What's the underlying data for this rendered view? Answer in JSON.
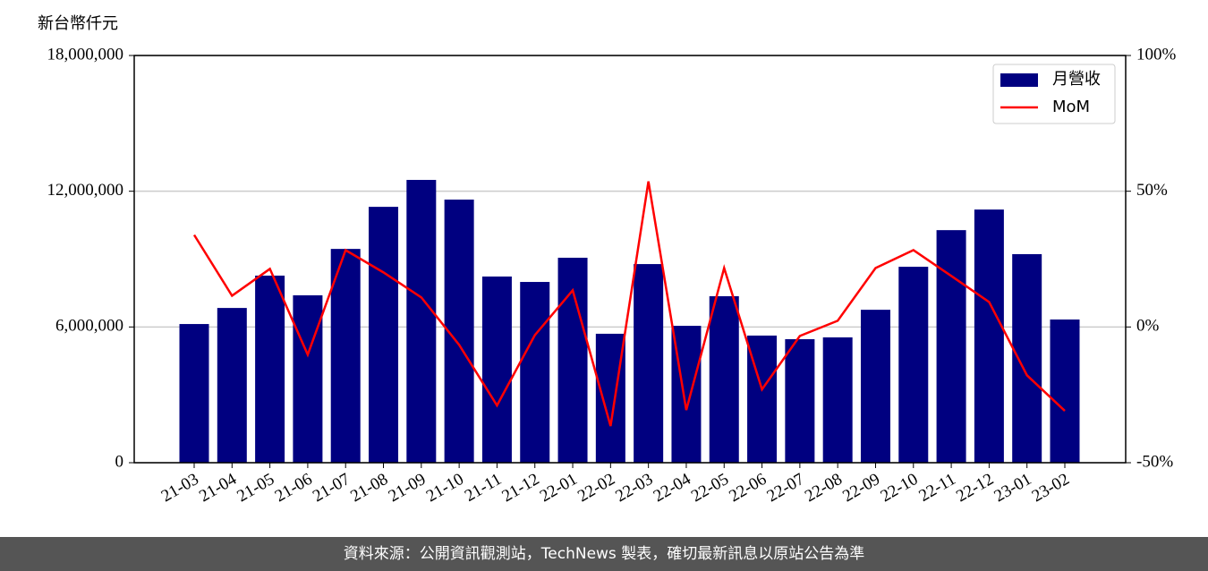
{
  "chart_data": {
    "type": "bar",
    "y_label": "新台幣仟元",
    "categories": [
      "21-03",
      "21-04",
      "21-05",
      "21-06",
      "21-07",
      "21-08",
      "21-09",
      "21-10",
      "21-11",
      "21-12",
      "22-01",
      "22-02",
      "22-03",
      "22-04",
      "22-05",
      "22-06",
      "22-07",
      "22-08",
      "22-09",
      "22-10",
      "22-11",
      "22-12",
      "23-01",
      "23-02"
    ],
    "series": [
      {
        "name": "月營收",
        "type": "bar",
        "color": "#000080",
        "values": [
          6130000,
          6840000,
          8270000,
          7400000,
          9450000,
          11310000,
          12500000,
          11630000,
          8230000,
          7990000,
          9060000,
          5700000,
          8780000,
          6050000,
          7360000,
          5620000,
          5460000,
          5540000,
          6760000,
          8660000,
          10280000,
          11190000,
          9220000,
          6330000
        ]
      },
      {
        "name": "MoM",
        "type": "line",
        "axis": "y2",
        "color": "#ff0000",
        "values": [
          33.9,
          11.5,
          21.4,
          -10.2,
          28.3,
          20.1,
          10.9,
          -6.6,
          -28.9,
          -3.0,
          13.5,
          -36.5,
          53.6,
          -30.6,
          21.7,
          -23.0,
          -3.3,
          2.3,
          21.7,
          28.3,
          18.8,
          9.2,
          -17.8,
          -30.9
        ]
      }
    ],
    "ylim": [
      0,
      18000000
    ],
    "yticks": [
      0,
      {
        "value": 6000000,
        "label": "6,000,000"
      },
      {
        "value": 12000000,
        "label": "12,000,000"
      },
      {
        "value": 18000000,
        "label": "18,000,000"
      }
    ],
    "y2lim": [
      -50,
      100
    ],
    "y2ticks": [
      {
        "value": -50,
        "label": "-50%"
      },
      {
        "value": 0,
        "label": "0%"
      },
      {
        "value": 50,
        "label": "50%"
      },
      {
        "value": 100,
        "label": "100%"
      }
    ],
    "grid": true,
    "legend": "upper right"
  },
  "footer": "資料來源：公開資訊觀測站，TechNews 製表，確切最新訊息以原站公告為準"
}
